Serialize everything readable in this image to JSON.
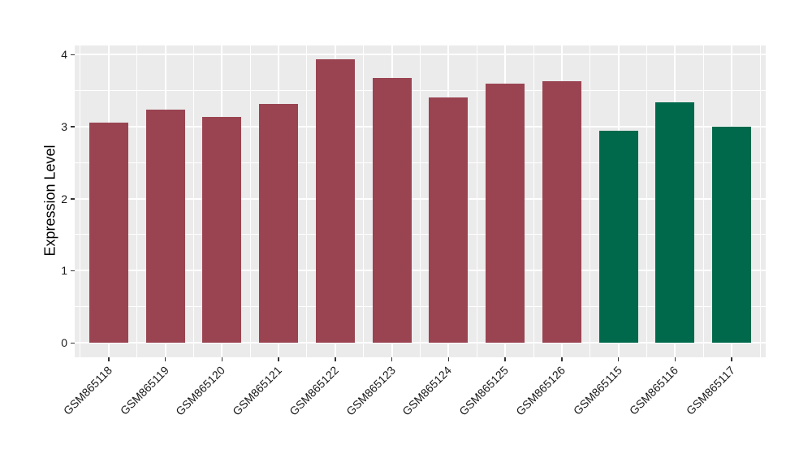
{
  "chart_data": {
    "type": "bar",
    "title": "",
    "xlabel": "",
    "ylabel": "Expression Level",
    "categories": [
      "GSM865118",
      "GSM865119",
      "GSM865120",
      "GSM865121",
      "GSM865122",
      "GSM865123",
      "GSM865124",
      "GSM865125",
      "GSM865126",
      "GSM865115",
      "GSM865116",
      "GSM865117"
    ],
    "values": [
      3.05,
      3.23,
      3.13,
      3.31,
      3.93,
      3.67,
      3.4,
      3.6,
      3.63,
      2.94,
      3.34,
      3.0
    ],
    "bar_colors": [
      "#9A4451",
      "#9A4451",
      "#9A4451",
      "#9A4451",
      "#9A4451",
      "#9A4451",
      "#9A4451",
      "#9A4451",
      "#9A4451",
      "#01694B",
      "#01694B",
      "#01694B"
    ],
    "ylim": [
      0,
      4
    ],
    "yticks": [
      0,
      1,
      2,
      3,
      4
    ],
    "yticks_minor": [
      0.5,
      1.5,
      2.5,
      3.5
    ],
    "grid": "on",
    "legend_position": "none"
  },
  "style": {
    "panel_background": "#EBEBEB",
    "grid_color": "#FFFFFF",
    "bar_color_group_a": "#9A4451",
    "bar_color_group_b": "#01694B",
    "tick_color": "#333333",
    "text_color": "#1a1a1a",
    "figure_background": "#FFFFFF"
  }
}
